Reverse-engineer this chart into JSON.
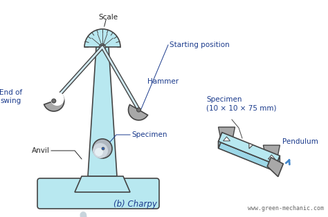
{
  "bg_color": "#ffffff",
  "light_blue": "#b8e8f0",
  "light_blue2": "#cceef8",
  "dark_outline": "#444444",
  "label_color": "#1a3a8c",
  "gray_color": "#a8a8a8",
  "gray_light": "#c8c8c8",
  "gray_dark": "#707070",
  "arrow_color": "#c8d4dc",
  "blue_arrow": "#4488cc",
  "title_text": "(b) Charpy",
  "watermark": "www.green-mechanic.com",
  "scale_label": "Scale",
  "start_pos_label": "Starting position",
  "hammer_label": "Hammer",
  "end_swing_label": "End of\nswing",
  "anvil_label": "Anvil",
  "specimen_main_label": "Specimen",
  "specimen_detail_label": "Specimen\n(10 × 10 × 75 mm)",
  "pendulum_label": "Pendulum"
}
